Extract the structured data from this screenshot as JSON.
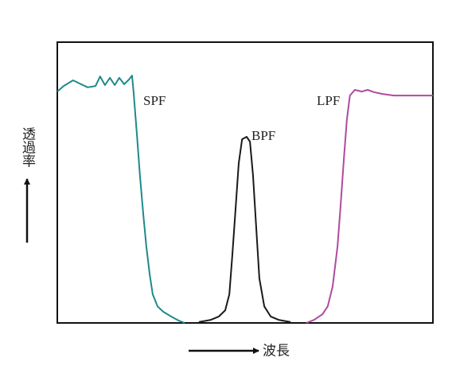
{
  "chart_data": {
    "type": "line",
    "y_label": "透過率",
    "x_label": "波長",
    "xlim": [
      0,
      100
    ],
    "ylim": [
      0,
      100
    ],
    "series": [
      {
        "name": "SPF",
        "color": "#1e8a8a",
        "x": [
          0,
          1.7,
          4.2,
          5.9,
          8.1,
          10.2,
          11.4,
          12.7,
          14.0,
          15.3,
          16.5,
          17.8,
          19.1,
          19.9,
          20.3,
          21.2,
          22.0,
          22.9,
          23.7,
          24.6,
          25.4,
          26.7,
          28.2,
          30.3,
          32.4,
          33.9
        ],
        "values": [
          82.4,
          84.4,
          86.4,
          85.3,
          83.9,
          84.4,
          87.8,
          84.7,
          87.3,
          84.7,
          87.3,
          85.0,
          86.7,
          88.1,
          82.4,
          66.9,
          52.7,
          38.5,
          27.2,
          17.3,
          10.2,
          5.9,
          4.0,
          2.3,
          0.8,
          0
        ]
      },
      {
        "name": "BPF",
        "color": "#1a1a1a",
        "x": [
          37.7,
          40.9,
          43.0,
          44.7,
          45.8,
          46.6,
          47.5,
          48.3,
          49.2,
          50.4,
          51.3,
          52.1,
          53.0,
          53.8,
          55.1,
          56.8,
          58.9,
          62.1
        ],
        "values": [
          0.3,
          1.1,
          2.3,
          4.5,
          10.2,
          24.4,
          41.4,
          56.9,
          65.4,
          66.3,
          64.6,
          52.7,
          32.9,
          15.9,
          5.9,
          2.3,
          1.1,
          0.3
        ]
      },
      {
        "name": "LPF",
        "color": "#b04aa0",
        "x": [
          66.3,
          68.4,
          70.6,
          72.0,
          73.3,
          74.6,
          75.4,
          76.3,
          77.1,
          77.9,
          79.2,
          81.1,
          82.6,
          84.3,
          86.4,
          89.6,
          100
        ],
        "values": [
          0,
          1.1,
          3.1,
          5.9,
          13.0,
          27.2,
          41.4,
          58.4,
          72.5,
          81.0,
          83.0,
          82.4,
          83.0,
          82.2,
          81.6,
          81.0,
          81.0
        ]
      }
    ]
  }
}
